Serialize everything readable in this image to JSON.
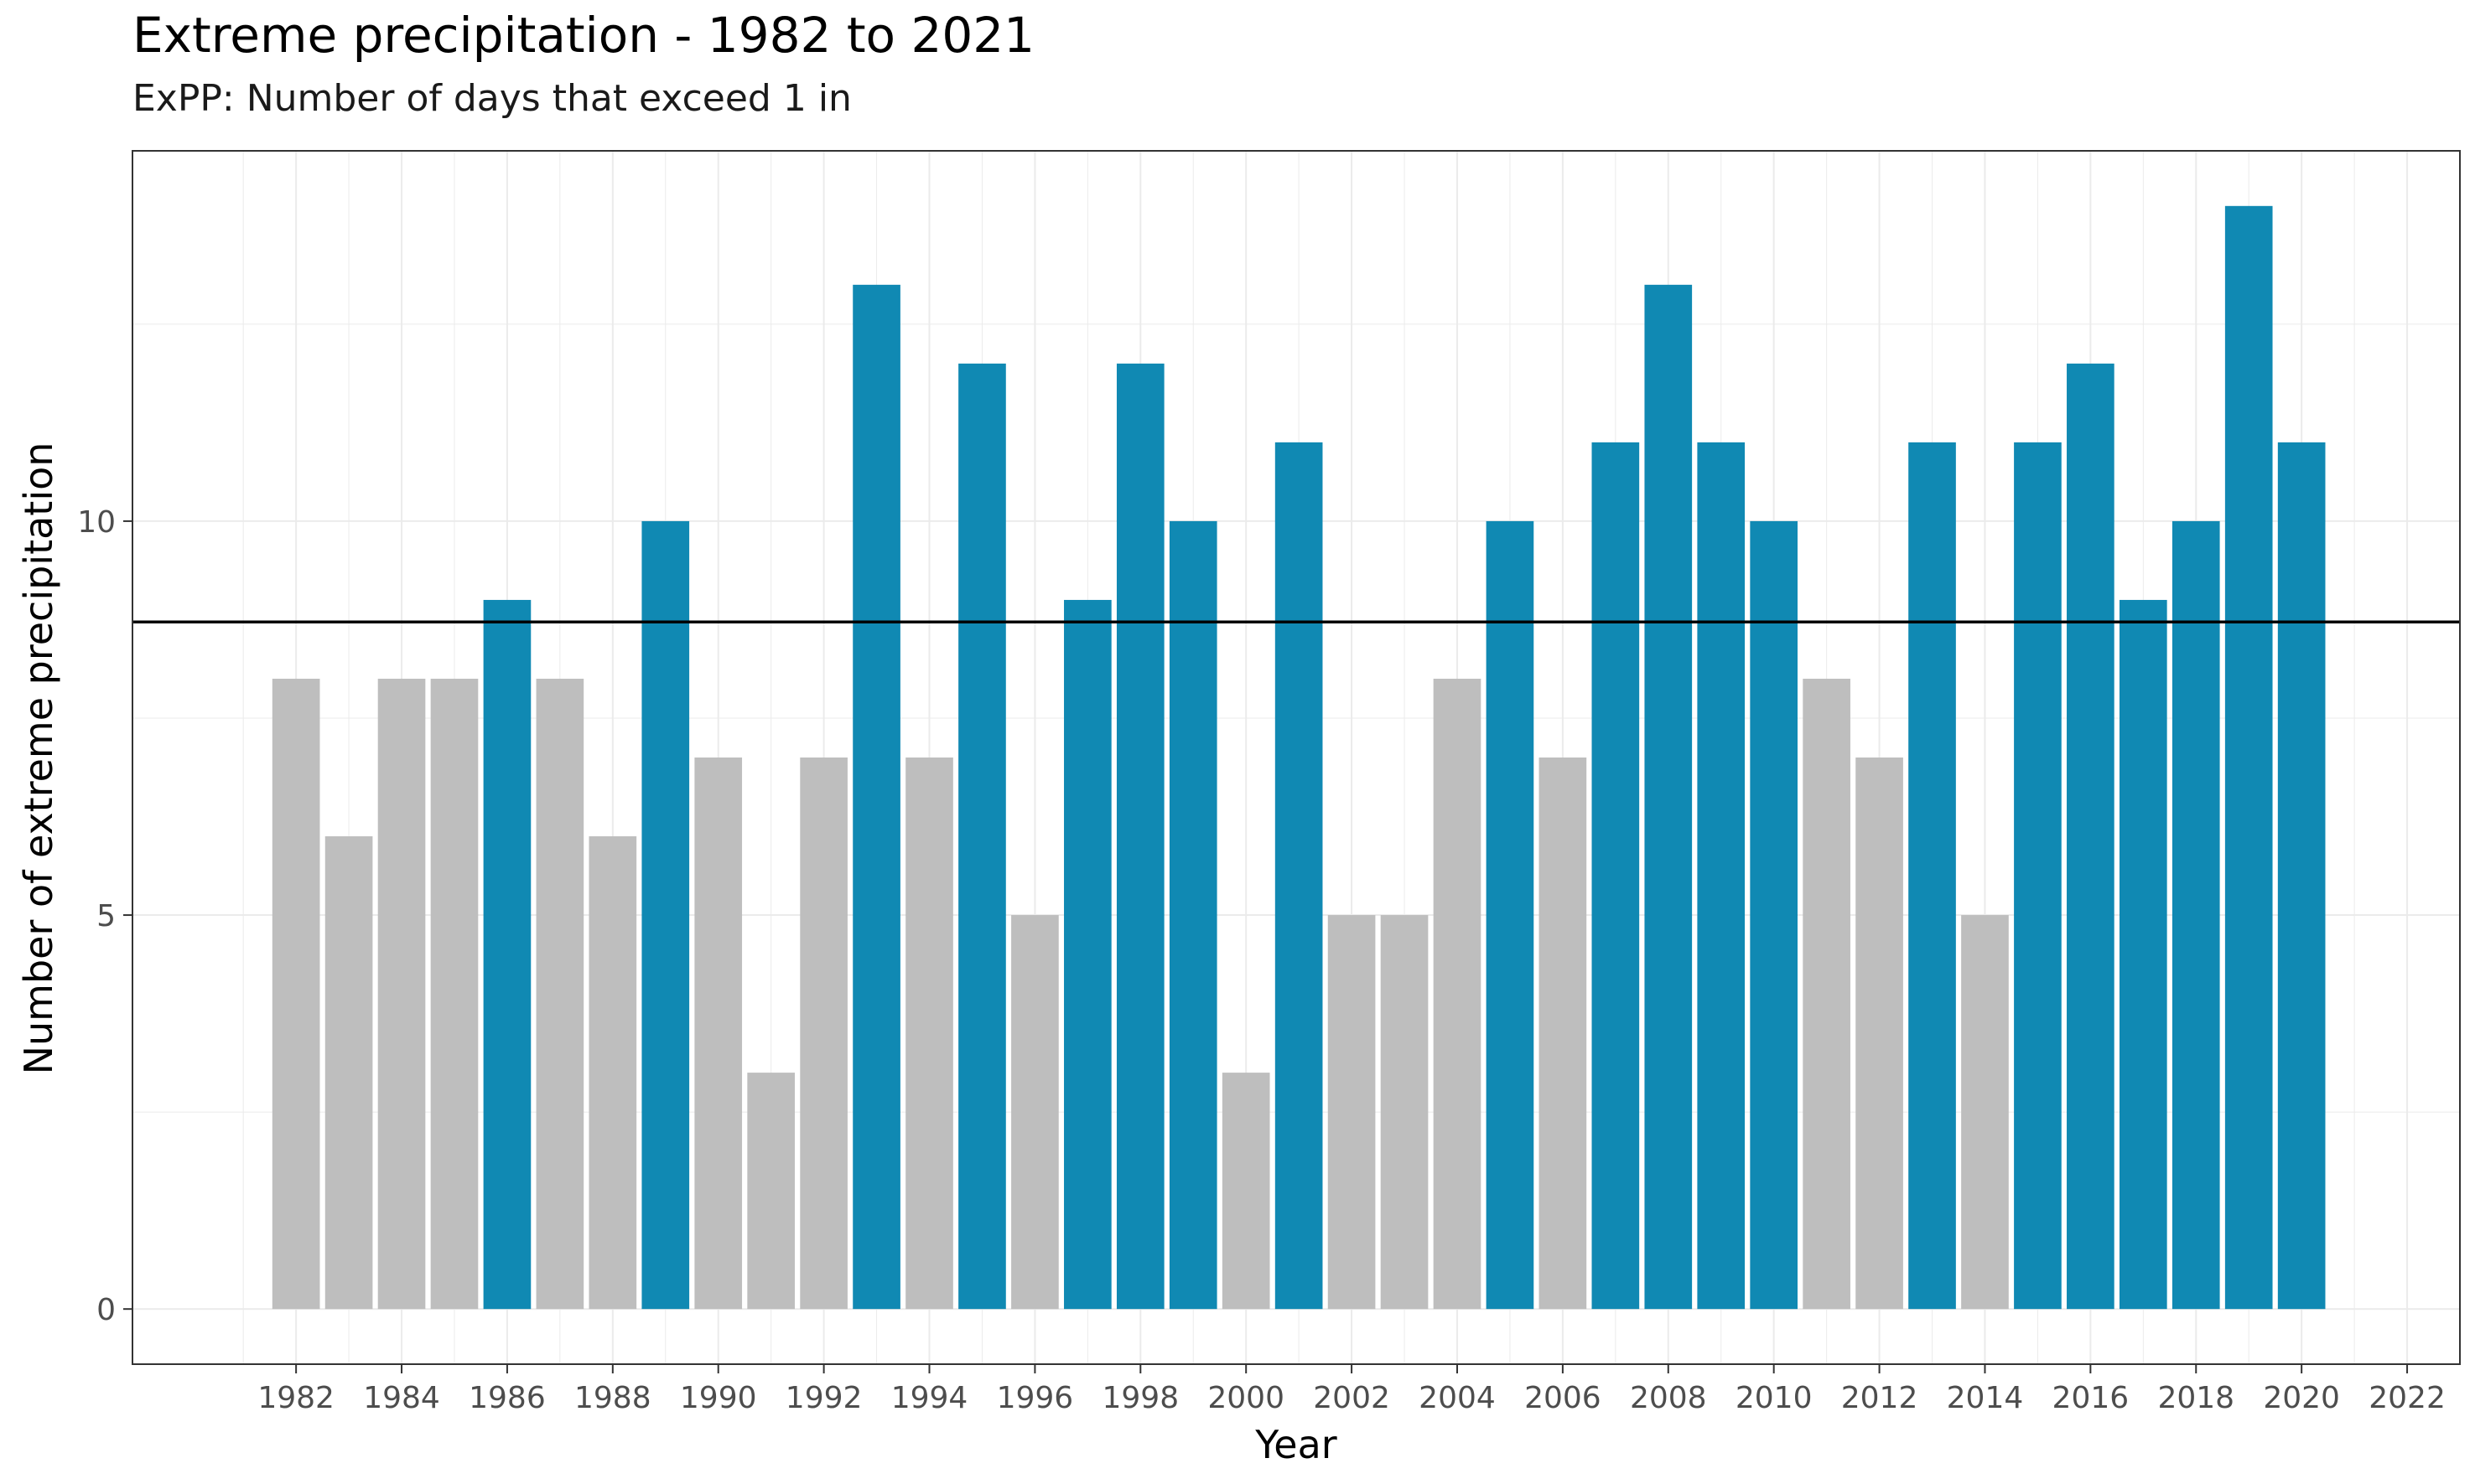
{
  "chart_data": {
    "type": "bar",
    "title": "Extreme precipitation - 1982 to 2021",
    "subtitle": "ExPP: Number of days that exceed 1 in",
    "xlabel": "Year",
    "ylabel": "Number of extreme precipitation",
    "x": [
      1982,
      1983,
      1984,
      1985,
      1986,
      1987,
      1988,
      1989,
      1990,
      1991,
      1992,
      1993,
      1994,
      1995,
      1996,
      1997,
      1998,
      1999,
      2000,
      2001,
      2002,
      2003,
      2004,
      2005,
      2006,
      2007,
      2008,
      2009,
      2010,
      2011,
      2012,
      2013,
      2014,
      2015,
      2016,
      2017,
      2018,
      2019,
      2020
    ],
    "values": [
      8,
      6,
      8,
      8,
      9,
      8,
      6,
      10,
      7,
      3,
      7,
      13,
      7,
      12,
      5,
      9,
      12,
      10,
      3,
      11,
      5,
      5,
      8,
      10,
      7,
      11,
      13,
      11,
      10,
      8,
      7,
      11,
      5,
      11,
      12,
      9,
      10,
      14,
      11
    ],
    "reference_line": 8.72,
    "xticks": [
      1982,
      1984,
      1986,
      1988,
      1990,
      1992,
      1994,
      1996,
      1998,
      2000,
      2002,
      2004,
      2006,
      2008,
      2010,
      2012,
      2014,
      2016,
      2018,
      2020,
      2022
    ],
    "yticks": [
      0,
      5,
      10
    ],
    "xlim": [
      1978.9,
      2023
    ],
    "ylim": [
      -0.7,
      14.7
    ],
    "colors": {
      "above": "#1089b3",
      "below": "#bebebe",
      "reference_line": "#000000",
      "grid": "#ebebeb",
      "panel_border": "#333333"
    },
    "grid": true,
    "legend": "none"
  }
}
